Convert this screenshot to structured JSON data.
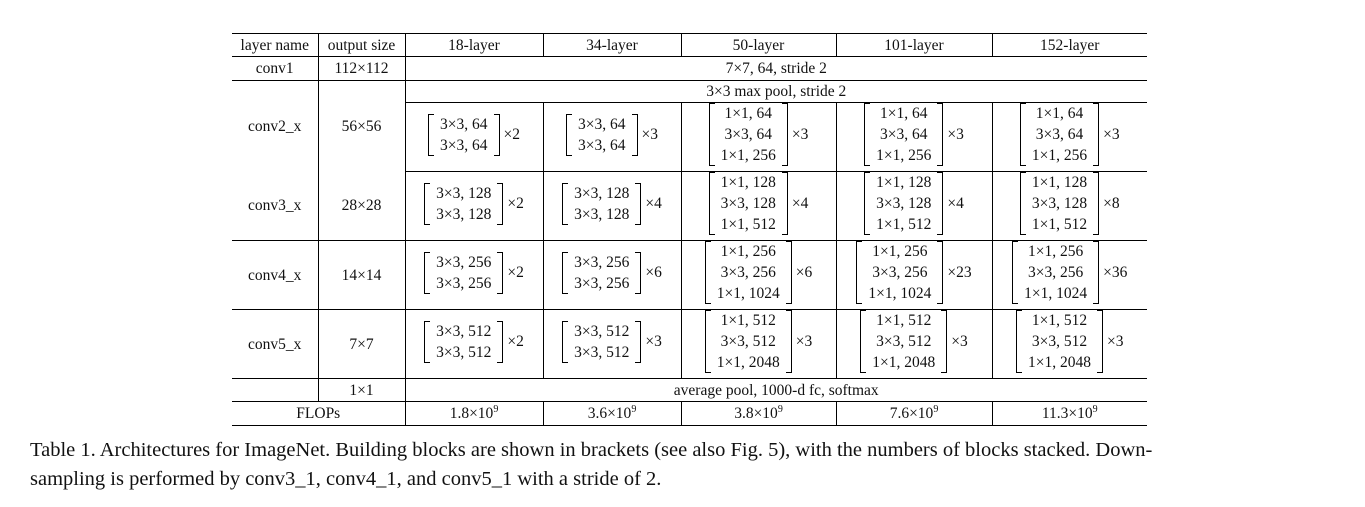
{
  "headers": [
    "layer name",
    "output size",
    "18-layer",
    "34-layer",
    "50-layer",
    "101-layer",
    "152-layer"
  ],
  "conv1": {
    "name": "conv1",
    "size": "112×112",
    "spec": "7×7, 64, stride 2"
  },
  "conv2": {
    "name": "conv2_x",
    "size": "56×56",
    "pool": "3×3 max pool, stride 2",
    "blocks": [
      {
        "lines": [
          "3×3, 64",
          "3×3, 64"
        ],
        "rep": "×2"
      },
      {
        "lines": [
          "3×3, 64",
          "3×3, 64"
        ],
        "rep": "×3"
      },
      {
        "lines": [
          "1×1, 64",
          "3×3, 64",
          "1×1, 256"
        ],
        "rep": "×3"
      },
      {
        "lines": [
          "1×1, 64",
          "3×3, 64",
          "1×1, 256"
        ],
        "rep": "×3"
      },
      {
        "lines": [
          "1×1, 64",
          "3×3, 64",
          "1×1, 256"
        ],
        "rep": "×3"
      }
    ]
  },
  "conv3": {
    "name": "conv3_x",
    "size": "28×28",
    "blocks": [
      {
        "lines": [
          "3×3, 128",
          "3×3, 128"
        ],
        "rep": "×2"
      },
      {
        "lines": [
          "3×3, 128",
          "3×3, 128"
        ],
        "rep": "×4"
      },
      {
        "lines": [
          "1×1, 128",
          "3×3, 128",
          "1×1, 512"
        ],
        "rep": "×4"
      },
      {
        "lines": [
          "1×1, 128",
          "3×3, 128",
          "1×1, 512"
        ],
        "rep": "×4"
      },
      {
        "lines": [
          "1×1, 128",
          "3×3, 128",
          "1×1, 512"
        ],
        "rep": "×8"
      }
    ]
  },
  "conv4": {
    "name": "conv4_x",
    "size": "14×14",
    "blocks": [
      {
        "lines": [
          "3×3, 256",
          "3×3, 256"
        ],
        "rep": "×2"
      },
      {
        "lines": [
          "3×3, 256",
          "3×3, 256"
        ],
        "rep": "×6"
      },
      {
        "lines": [
          "1×1, 256",
          "3×3, 256",
          "1×1, 1024"
        ],
        "rep": "×6"
      },
      {
        "lines": [
          "1×1, 256",
          "3×3, 256",
          "1×1, 1024"
        ],
        "rep": "×23"
      },
      {
        "lines": [
          "1×1, 256",
          "3×3, 256",
          "1×1, 1024"
        ],
        "rep": "×36"
      }
    ]
  },
  "conv5": {
    "name": "conv5_x",
    "size": "7×7",
    "blocks": [
      {
        "lines": [
          "3×3, 512",
          "3×3, 512"
        ],
        "rep": "×2"
      },
      {
        "lines": [
          "3×3, 512",
          "3×3, 512"
        ],
        "rep": "×3"
      },
      {
        "lines": [
          "1×1, 512",
          "3×3, 512",
          "1×1, 2048"
        ],
        "rep": "×3"
      },
      {
        "lines": [
          "1×1, 512",
          "3×3, 512",
          "1×1, 2048"
        ],
        "rep": "×3"
      },
      {
        "lines": [
          "1×1, 512",
          "3×3, 512",
          "1×1, 2048"
        ],
        "rep": "×3"
      }
    ]
  },
  "final": {
    "size": "1×1",
    "spec": "average pool, 1000-d fc, softmax"
  },
  "flops": {
    "label": "FLOPs",
    "values": [
      {
        "base": "1.8×10",
        "exp": "9"
      },
      {
        "base": "3.6×10",
        "exp": "9"
      },
      {
        "base": "3.8×10",
        "exp": "9"
      },
      {
        "base": "7.6×10",
        "exp": "9"
      },
      {
        "base": "11.3×10",
        "exp": "9"
      }
    ]
  },
  "caption": {
    "line1": "Table 1. Architectures for ImageNet. Building blocks are shown in brackets (see also Fig. 5), with the numbers of blocks stacked. Down-",
    "line2": "sampling is performed by conv3_1, conv4_1, and conv5_1 with a stride of 2."
  }
}
